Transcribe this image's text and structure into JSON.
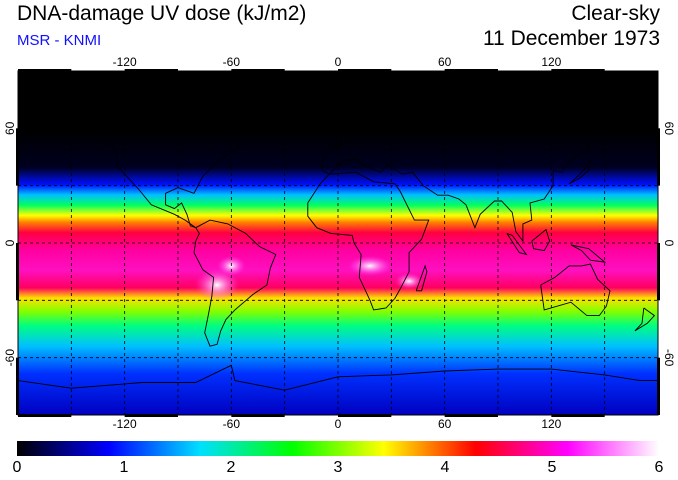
{
  "title": "DNA-damage UV dose (kJ/m2)",
  "subtitle": "MSR - KNMI",
  "condition": "Clear-sky",
  "date": "11 December 1973",
  "lon_ticks": [
    "-120",
    "-60",
    "0",
    "60",
    "120"
  ],
  "lat_ticks": [
    "60",
    "0",
    "-60"
  ],
  "colorbar": {
    "min": 0,
    "max": 6,
    "labels": [
      "0",
      "1",
      "2",
      "3",
      "4",
      "5",
      "6"
    ],
    "colors": [
      "#000000",
      "#0000ff",
      "#00e0ff",
      "#00ff00",
      "#ffff00",
      "#ff0000",
      "#ff00ff",
      "#ffffff"
    ]
  },
  "map": {
    "projection": "equirectangular",
    "lon_range": [
      -180,
      180
    ],
    "lat_range": [
      -90,
      90
    ]
  }
}
